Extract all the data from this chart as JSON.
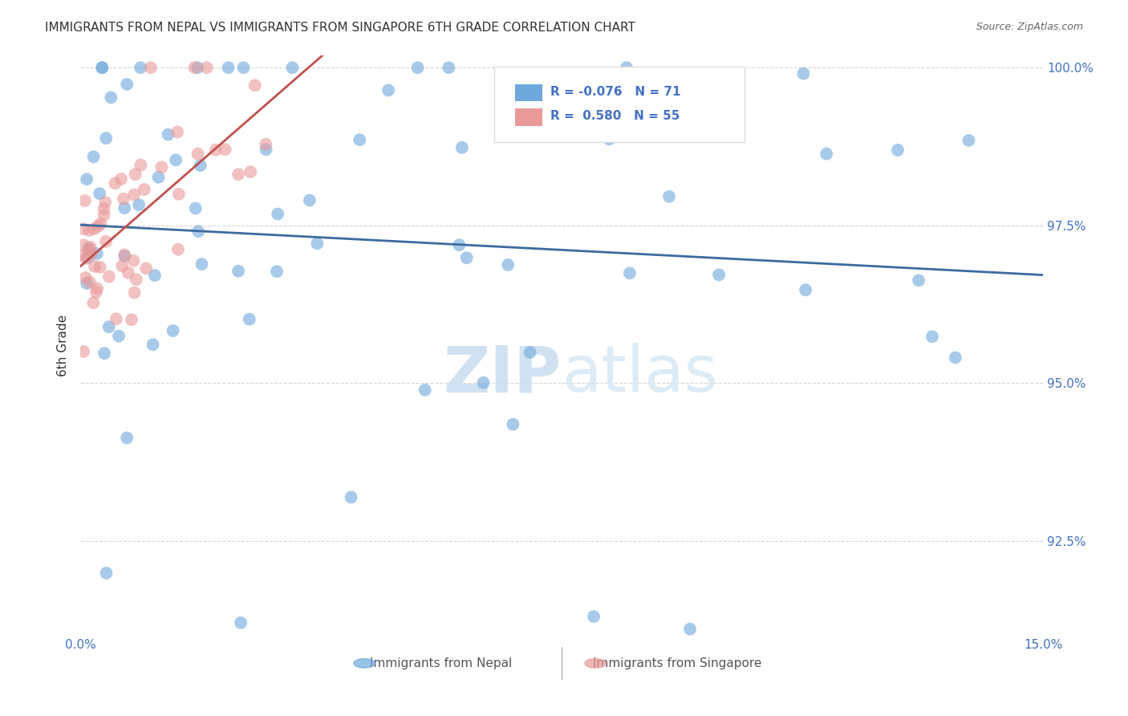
{
  "title": "IMMIGRANTS FROM NEPAL VS IMMIGRANTS FROM SINGAPORE 6TH GRADE CORRELATION CHART",
  "source": "Source: ZipAtlas.com",
  "ylabel": "6th Grade",
  "xlabel_nepal": "Immigrants from Nepal",
  "xlabel_singapore": "Immigrants from Singapore",
  "watermark_zip": "ZIP",
  "watermark_atlas": "atlas",
  "legend_nepal_R": "-0.076",
  "legend_nepal_N": "71",
  "legend_singapore_R": "0.580",
  "legend_singapore_N": "55",
  "xlim": [
    0.0,
    0.15
  ],
  "ylim": [
    0.91,
    1.002
  ],
  "yticks": [
    0.925,
    0.95,
    0.975,
    1.0
  ],
  "ytick_labels": [
    "92.5%",
    "95.0%",
    "97.5%",
    "100.0%"
  ],
  "xticks": [
    0.0,
    0.15
  ],
  "xtick_labels": [
    "0.0%",
    "15.0%"
  ],
  "color_nepal": "#6fa8dc",
  "color_singapore": "#ea9999",
  "color_nepal_line": "#3d6b9e",
  "color_singapore_line": "#c0504d",
  "background_color": "#ffffff",
  "grid_color": "#cccccc",
  "axis_color": "#4472c4"
}
